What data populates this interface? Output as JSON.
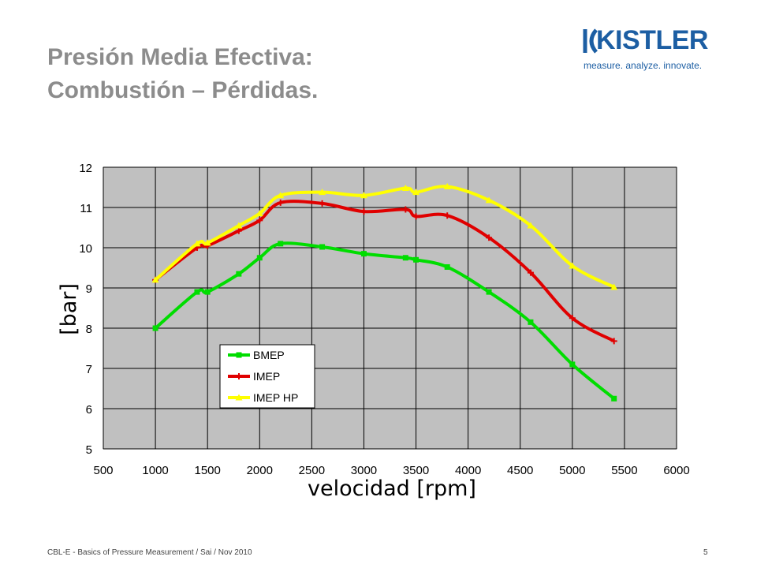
{
  "title": {
    "line1": "Presión Media Efectiva:",
    "line2": "Combustión – Pérdidas."
  },
  "logo": {
    "name": "KISTLER",
    "tagline": "measure. analyze. innovate."
  },
  "footer": {
    "text": "CBL-E - Basics of Pressure Measurement / Sai / Nov 2010",
    "page": "5"
  },
  "colors": {
    "plot_bg": "#c0c0c0",
    "title": "#8c8c8c",
    "brand": "#1c5ea3"
  },
  "chart_data": {
    "type": "line",
    "xlabel": "velocidad [rpm]",
    "ylabel": "[bar]",
    "xlim": [
      500,
      6000
    ],
    "ylim": [
      5,
      12
    ],
    "xticks": [
      500,
      1000,
      1500,
      2000,
      2500,
      3000,
      3500,
      4000,
      4500,
      5000,
      5500,
      6000
    ],
    "yticks": [
      5,
      6,
      7,
      8,
      9,
      10,
      11,
      12
    ],
    "grid": true,
    "legend_position": "lower-left",
    "series": [
      {
        "name": "BMEP",
        "color": "#00dd00",
        "marker": "square",
        "x": [
          1000,
          1400,
          1500,
          1800,
          2000,
          2200,
          2600,
          3000,
          3400,
          3500,
          3800,
          4200,
          4600,
          5000,
          5400
        ],
        "y": [
          8.0,
          8.9,
          8.9,
          9.35,
          9.75,
          10.1,
          10.02,
          9.85,
          9.75,
          9.7,
          9.52,
          8.9,
          8.15,
          7.1,
          6.25
        ]
      },
      {
        "name": "IMEP",
        "color": "#e00000",
        "marker": "plus",
        "x": [
          1000,
          1400,
          1500,
          1800,
          2000,
          2200,
          2600,
          3000,
          3400,
          3500,
          3800,
          4200,
          4600,
          5000,
          5400
        ],
        "y": [
          9.2,
          10.0,
          10.05,
          10.42,
          10.68,
          11.12,
          11.1,
          10.9,
          10.95,
          10.78,
          10.8,
          10.25,
          9.38,
          8.25,
          7.68
        ]
      },
      {
        "name": "IMEP HP",
        "color": "#ffff00",
        "marker": "triangle",
        "x": [
          1000,
          1400,
          1500,
          1800,
          2000,
          2200,
          2600,
          3000,
          3400,
          3500,
          3800,
          4200,
          4600,
          5000,
          5400
        ],
        "y": [
          9.2,
          10.1,
          10.12,
          10.55,
          10.85,
          11.3,
          11.38,
          11.3,
          11.48,
          11.38,
          11.52,
          11.18,
          10.55,
          9.55,
          9.02
        ]
      }
    ]
  }
}
